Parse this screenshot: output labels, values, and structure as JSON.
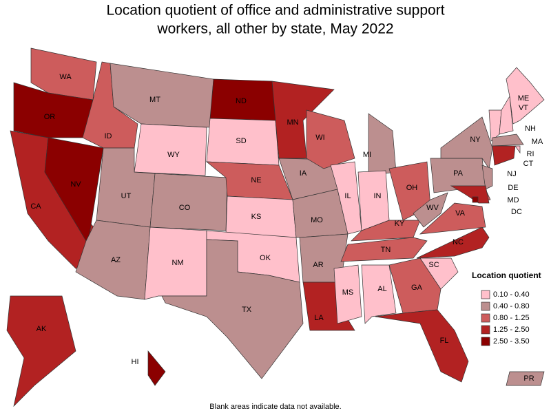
{
  "title": [
    "Location quotient of office and administrative support",
    "workers, all other by state, May 2022"
  ],
  "footnote": "Blank areas indicate data not available.",
  "legend": {
    "title": "Location quotient",
    "items": [
      {
        "label": "0.10 - 0.40",
        "color": "#ffc0cb"
      },
      {
        "label": "0.40 - 0.80",
        "color": "#bc8f8f"
      },
      {
        "label": "0.80 - 1.25",
        "color": "#cd5c5c"
      },
      {
        "label": "1.25 - 2.50",
        "color": "#b22222"
      },
      {
        "label": "2.50 - 3.50",
        "color": "#8b0000"
      }
    ]
  },
  "states": [
    {
      "abbr": "WA",
      "class": 2
    },
    {
      "abbr": "OR",
      "class": 4
    },
    {
      "abbr": "CA",
      "class": 3
    },
    {
      "abbr": "NV",
      "class": 4
    },
    {
      "abbr": "ID",
      "class": 2
    },
    {
      "abbr": "MT",
      "class": 1
    },
    {
      "abbr": "WY",
      "class": 0
    },
    {
      "abbr": "UT",
      "class": 1
    },
    {
      "abbr": "CO",
      "class": 1
    },
    {
      "abbr": "AZ",
      "class": 1
    },
    {
      "abbr": "NM",
      "class": 0
    },
    {
      "abbr": "ND",
      "class": 4
    },
    {
      "abbr": "SD",
      "class": 0
    },
    {
      "abbr": "NE",
      "class": 2
    },
    {
      "abbr": "KS",
      "class": 0
    },
    {
      "abbr": "OK",
      "class": 0
    },
    {
      "abbr": "TX",
      "class": 1
    },
    {
      "abbr": "MN",
      "class": 3
    },
    {
      "abbr": "IA",
      "class": 1
    },
    {
      "abbr": "MO",
      "class": 1
    },
    {
      "abbr": "AR",
      "class": 1
    },
    {
      "abbr": "LA",
      "class": 3
    },
    {
      "abbr": "WI",
      "class": 2
    },
    {
      "abbr": "IL",
      "class": 0
    },
    {
      "abbr": "MI",
      "class": 1
    },
    {
      "abbr": "IN",
      "class": 0
    },
    {
      "abbr": "OH",
      "class": 2
    },
    {
      "abbr": "KY",
      "class": 2
    },
    {
      "abbr": "TN",
      "class": 2
    },
    {
      "abbr": "MS",
      "class": 0
    },
    {
      "abbr": "AL",
      "class": 0
    },
    {
      "abbr": "GA",
      "class": 2
    },
    {
      "abbr": "FL",
      "class": 3
    },
    {
      "abbr": "SC",
      "class": 0
    },
    {
      "abbr": "NC",
      "class": 3
    },
    {
      "abbr": "VA",
      "class": 2
    },
    {
      "abbr": "WV",
      "class": 1
    },
    {
      "abbr": "PA",
      "class": 1
    },
    {
      "abbr": "NY",
      "class": 1
    },
    {
      "abbr": "NJ",
      "class": 1
    },
    {
      "abbr": "DE",
      "class": 2
    },
    {
      "abbr": "MD",
      "class": 3
    },
    {
      "abbr": "DC",
      "class": 4
    },
    {
      "abbr": "VT",
      "class": 0
    },
    {
      "abbr": "NH",
      "class": 0
    },
    {
      "abbr": "ME",
      "class": 0
    },
    {
      "abbr": "MA",
      "class": 1
    },
    {
      "abbr": "RI",
      "class": 0
    },
    {
      "abbr": "CT",
      "class": 3
    },
    {
      "abbr": "AK",
      "class": 3
    },
    {
      "abbr": "HI",
      "class": 4
    },
    {
      "abbr": "PR",
      "class": 1
    }
  ]
}
